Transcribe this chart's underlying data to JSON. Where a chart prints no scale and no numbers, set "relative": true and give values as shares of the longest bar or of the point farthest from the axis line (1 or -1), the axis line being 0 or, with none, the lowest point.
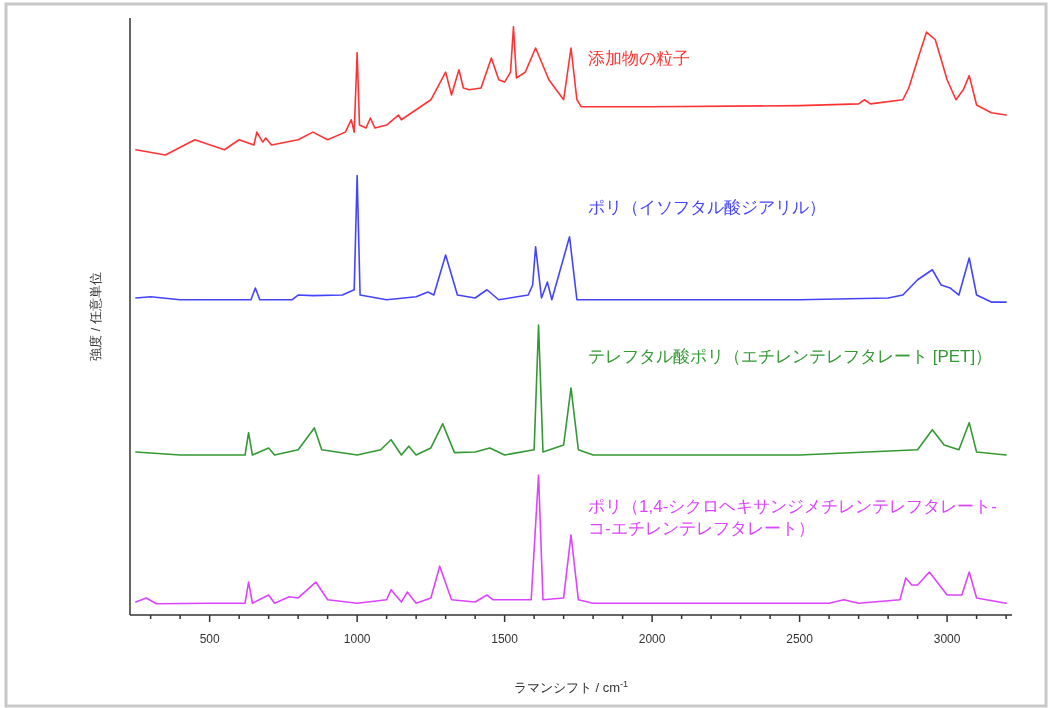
{
  "chart_data": {
    "type": "line",
    "relative": true,
    "xlabel": "ラマンシフト / cm$^{-1}$",
    "ylabel": "強度 / 任意単位",
    "xlim": [
      230,
      3220
    ],
    "xticks": [
      {
        "value": 300,
        "label": null
      },
      {
        "value": 400,
        "label": null
      },
      500,
      {
        "value": 600,
        "label": null
      },
      {
        "value": 700,
        "label": null
      },
      {
        "value": 800,
        "label": null
      },
      {
        "value": 900,
        "label": null
      },
      1000,
      {
        "value": 1100,
        "label": null
      },
      {
        "value": 1200,
        "label": null
      },
      {
        "value": 1300,
        "label": null
      },
      {
        "value": 1400,
        "label": null
      },
      1500,
      {
        "value": 1600,
        "label": null
      },
      {
        "value": 1700,
        "label": null
      },
      {
        "value": 1800,
        "label": null
      },
      {
        "value": 1900,
        "label": null
      },
      2000,
      {
        "value": 2100,
        "label": null
      },
      {
        "value": 2200,
        "label": null
      },
      {
        "value": 2300,
        "label": null
      },
      {
        "value": 2400,
        "label": null
      },
      2500,
      {
        "value": 2600,
        "label": null
      },
      {
        "value": 2700,
        "label": null
      },
      {
        "value": 2800,
        "label": null
      },
      {
        "value": 2900,
        "label": null
      },
      3000,
      {
        "value": 3100,
        "label": null
      },
      {
        "value": 3200,
        "label": null
      }
    ],
    "series": [
      {
        "name": "添加物の粒子",
        "color": "#ff3333",
        "x": [
          250,
          350,
          450,
          550,
          600,
          650,
          660,
          680,
          690,
          710,
          800,
          850,
          900,
          960,
          980,
          990,
          1000,
          1008,
          1030,
          1045,
          1060,
          1100,
          1140,
          1150,
          1200,
          1250,
          1300,
          1320,
          1345,
          1360,
          1380,
          1420,
          1455,
          1480,
          1500,
          1520,
          1530,
          1540,
          1570,
          1605,
          1650,
          1700,
          1725,
          1745,
          1760,
          2000,
          2500,
          2700,
          2720,
          2740,
          2850,
          2870,
          2900,
          2930,
          2960,
          3000,
          3030,
          3055,
          3075,
          3100,
          3150,
          3200
        ],
        "values": [
          0.791,
          0.782,
          0.808,
          0.791,
          0.808,
          0.799,
          0.821,
          0.804,
          0.811,
          0.799,
          0.808,
          0.821,
          0.808,
          0.821,
          0.842,
          0.821,
          0.956,
          0.833,
          0.828,
          0.845,
          0.828,
          0.833,
          0.85,
          0.842,
          0.859,
          0.876,
          0.923,
          0.884,
          0.927,
          0.896,
          0.893,
          0.896,
          0.947,
          0.91,
          0.906,
          0.923,
          1.0,
          0.913,
          0.923,
          0.964,
          0.91,
          0.876,
          0.964,
          0.876,
          0.864,
          0.864,
          0.866,
          0.869,
          0.876,
          0.869,
          0.876,
          0.896,
          0.944,
          0.991,
          0.978,
          0.91,
          0.876,
          0.893,
          0.917,
          0.867,
          0.854,
          0.85
        ]
      },
      {
        "name": "ポリ（イソフタル酸ジアリル）",
        "color": "#4444ff",
        "x": [
          250,
          300,
          400,
          500,
          640,
          655,
          670,
          780,
          800,
          850,
          950,
          990,
          1000,
          1010,
          1100,
          1200,
          1240,
          1260,
          1300,
          1340,
          1400,
          1440,
          1480,
          1580,
          1595,
          1605,
          1625,
          1645,
          1660,
          1720,
          1745,
          2000,
          2500,
          2800,
          2850,
          2900,
          2950,
          2980,
          3010,
          3040,
          3075,
          3100,
          3150,
          3200
        ],
        "values": [
          0.539,
          0.541,
          0.536,
          0.536,
          0.536,
          0.556,
          0.536,
          0.536,
          0.544,
          0.543,
          0.544,
          0.553,
          0.747,
          0.544,
          0.536,
          0.541,
          0.549,
          0.544,
          0.612,
          0.544,
          0.539,
          0.553,
          0.536,
          0.544,
          0.561,
          0.626,
          0.539,
          0.566,
          0.536,
          0.643,
          0.536,
          0.536,
          0.536,
          0.539,
          0.544,
          0.57,
          0.587,
          0.561,
          0.556,
          0.544,
          0.607,
          0.544,
          0.532,
          0.532
        ]
      },
      {
        "name": "テレフタル酸ポリ（エチレンテレフタレート [PET]）",
        "color": "#339933",
        "x": [
          250,
          400,
          620,
          632,
          645,
          700,
          720,
          800,
          855,
          880,
          1000,
          1080,
          1115,
          1150,
          1175,
          1200,
          1250,
          1290,
          1330,
          1400,
          1450,
          1500,
          1600,
          1615,
          1630,
          1700,
          1725,
          1750,
          1800,
          2500,
          2900,
          2950,
          2990,
          3040,
          3075,
          3100,
          3200
        ],
        "values": [
          0.277,
          0.272,
          0.272,
          0.31,
          0.272,
          0.284,
          0.272,
          0.281,
          0.318,
          0.281,
          0.272,
          0.281,
          0.298,
          0.272,
          0.287,
          0.272,
          0.284,
          0.325,
          0.276,
          0.277,
          0.284,
          0.272,
          0.281,
          0.493,
          0.277,
          0.289,
          0.386,
          0.281,
          0.272,
          0.272,
          0.281,
          0.315,
          0.289,
          0.281,
          0.327,
          0.277,
          0.272
        ]
      },
      {
        "name": "ポリ（1,4-シクロヘキサンジメチレンテレフタレート-コ-エチレンテレフタレート）",
        "color": "#dd44ff",
        "x": [
          250,
          285,
          320,
          500,
          620,
          632,
          645,
          700,
          720,
          770,
          800,
          860,
          900,
          1000,
          1100,
          1115,
          1150,
          1170,
          1200,
          1250,
          1280,
          1320,
          1400,
          1440,
          1460,
          1590,
          1615,
          1630,
          1700,
          1725,
          1750,
          1800,
          2600,
          2650,
          2700,
          2840,
          2860,
          2880,
          2900,
          2940,
          3000,
          3050,
          3075,
          3100,
          3200
        ],
        "values": [
          0.022,
          0.029,
          0.019,
          0.02,
          0.02,
          0.056,
          0.02,
          0.034,
          0.02,
          0.031,
          0.029,
          0.056,
          0.026,
          0.02,
          0.026,
          0.043,
          0.022,
          0.039,
          0.02,
          0.029,
          0.083,
          0.026,
          0.022,
          0.034,
          0.026,
          0.026,
          0.238,
          0.026,
          0.029,
          0.136,
          0.026,
          0.02,
          0.02,
          0.026,
          0.02,
          0.026,
          0.063,
          0.051,
          0.051,
          0.073,
          0.034,
          0.034,
          0.073,
          0.029,
          0.02
        ]
      }
    ]
  }
}
